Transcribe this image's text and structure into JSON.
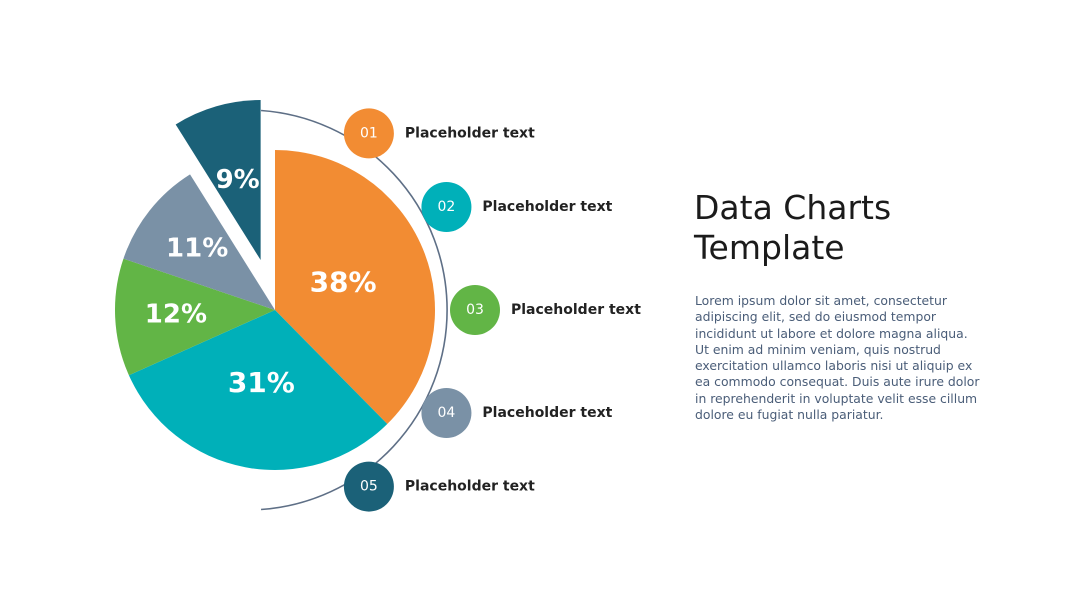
{
  "heading": {
    "line1": "Data Charts",
    "line2": "Template"
  },
  "body_text": "Lorem ipsum dolor sit amet, consectetur adipiscing elit, sed do eiusmod tempor incididunt ut labore et dolore magna aliqua. Ut enim ad minim veniam, quis nostrud exercitation ullamco laboris nisi ut aliquip ex ea commodo consequat. Duis aute irure dolor in reprehenderit in voluptate velit esse cillum dolore eu fugiat nulla pariatur.",
  "chart_data": {
    "type": "pie",
    "title": "",
    "slices": [
      {
        "label": "38%",
        "value": 38,
        "color": "#F28C33"
      },
      {
        "label": "31%",
        "value": 31,
        "color": "#00B0B9"
      },
      {
        "label": "12%",
        "value": 12,
        "color": "#62B546"
      },
      {
        "label": "11%",
        "value": 11,
        "color": "#7A91A6"
      },
      {
        "label": "9%",
        "value": 9,
        "color": "#1B6178",
        "exploded": true
      }
    ],
    "legend": [
      {
        "number": "01",
        "text": "Placeholder text",
        "color": "#F28C33"
      },
      {
        "number": "02",
        "text": "Placeholder text",
        "color": "#00B0B9"
      },
      {
        "number": "03",
        "text": "Placeholder text",
        "color": "#62B546"
      },
      {
        "number": "04",
        "text": "Placeholder text",
        "color": "#7A91A6"
      },
      {
        "number": "05",
        "text": "Placeholder text",
        "color": "#1B6178"
      }
    ],
    "connector_color": "#5E6F86"
  }
}
